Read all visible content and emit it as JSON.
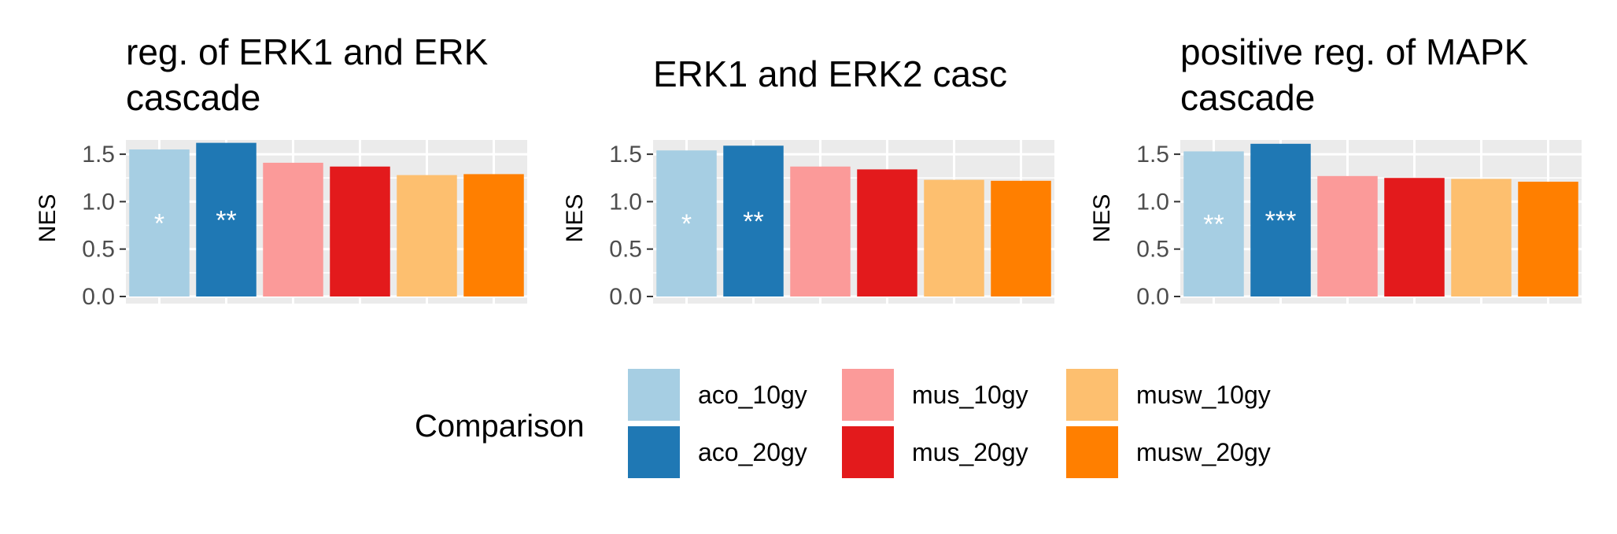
{
  "chart_data": [
    {
      "type": "bar",
      "title_lines": [
        "reg. of ERK1 and ERK",
        "cascade"
      ],
      "ylabel": "NES",
      "ylim": [
        0,
        1.65
      ],
      "yticks": [
        "0.0",
        "0.5",
        "1.0",
        "1.5"
      ],
      "categories": [
        "aco_10gy",
        "aco_20gy",
        "mus_10gy",
        "mus_20gy",
        "musw_10gy",
        "musw_20gy"
      ],
      "values": [
        1.55,
        1.62,
        1.41,
        1.37,
        1.28,
        1.29
      ],
      "significance": [
        "*",
        "**",
        "",
        "",
        "",
        ""
      ]
    },
    {
      "type": "bar",
      "title_lines": [
        "ERK1 and ERK2 casc"
      ],
      "ylabel": "NES",
      "ylim": [
        0,
        1.65
      ],
      "yticks": [
        "0.0",
        "0.5",
        "1.0",
        "1.5"
      ],
      "categories": [
        "aco_10gy",
        "aco_20gy",
        "mus_10gy",
        "mus_20gy",
        "musw_10gy",
        "musw_20gy"
      ],
      "values": [
        1.54,
        1.59,
        1.37,
        1.34,
        1.23,
        1.22
      ],
      "significance": [
        "*",
        "**",
        "",
        "",
        "",
        ""
      ]
    },
    {
      "type": "bar",
      "title_lines": [
        "positive reg. of MAPK",
        "cascade"
      ],
      "ylabel": "NES",
      "ylim": [
        0,
        1.65
      ],
      "yticks": [
        "0.0",
        "0.5",
        "1.0",
        "1.5"
      ],
      "categories": [
        "aco_10gy",
        "aco_20gy",
        "mus_10gy",
        "mus_20gy",
        "musw_10gy",
        "musw_20gy"
      ],
      "values": [
        1.53,
        1.61,
        1.27,
        1.25,
        1.24,
        1.21
      ],
      "significance": [
        "**",
        "***",
        "",
        "",
        "",
        ""
      ]
    }
  ],
  "legend": {
    "title": "Comparison",
    "items": [
      {
        "label": "aco_10gy",
        "color": "#a6cee3"
      },
      {
        "label": "aco_20gy",
        "color": "#1f78b4"
      },
      {
        "label": "mus_10gy",
        "color": "#fb9a99"
      },
      {
        "label": "mus_20gy",
        "color": "#e31a1c"
      },
      {
        "label": "musw_10gy",
        "color": "#fdbf6f"
      },
      {
        "label": "musw_20gy",
        "color": "#ff7f00"
      }
    ]
  },
  "colors": {
    "panel_bg": "#ebebeb",
    "grid": "#ffffff"
  }
}
